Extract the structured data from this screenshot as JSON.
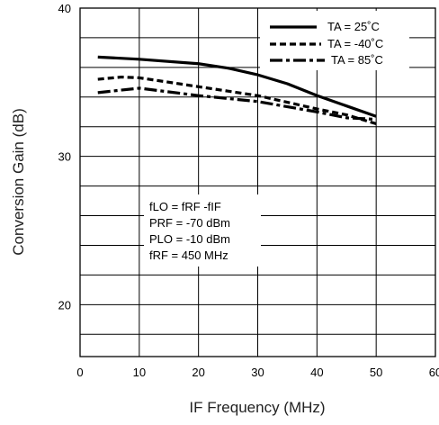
{
  "chart_data": {
    "type": "line",
    "title": "",
    "xlabel": "IF Frequency (MHz)",
    "ylabel": "Conversion Gain (dB)",
    "xlim": [
      0,
      60
    ],
    "ylim": [
      16.5,
      40
    ],
    "x_ticks": [
      "0",
      "10",
      "20",
      "30",
      "40",
      "50",
      "60"
    ],
    "y_ticks": [
      "20",
      "30",
      "40"
    ],
    "grid": true,
    "legend_position": "top-right",
    "series": [
      {
        "name": "TA = 25˚C",
        "style": "solid",
        "x": [
          3,
          10,
          20,
          25,
          30,
          35,
          40,
          45,
          50
        ],
        "y": [
          36.7,
          36.55,
          36.25,
          35.95,
          35.5,
          34.9,
          34.1,
          33.4,
          32.7
        ]
      },
      {
        "name": "TA = -40˚C",
        "style": "dashed",
        "x": [
          3,
          7,
          10,
          20,
          30,
          40,
          45,
          50
        ],
        "y": [
          35.2,
          35.35,
          35.3,
          34.7,
          34.1,
          33.2,
          32.8,
          32.2
        ]
      },
      {
        "name": "TA = 85˚C",
        "style": "dash-dot",
        "x": [
          3,
          10,
          20,
          30,
          40,
          45,
          50
        ],
        "y": [
          34.3,
          34.6,
          34.1,
          33.7,
          33.0,
          32.6,
          32.5
        ]
      }
    ],
    "annotation": [
      "fLO = fRF -fIF",
      "PRF = -70 dBm",
      "PLO = -10 dBm",
      "fRF = 450 MHz"
    ]
  }
}
